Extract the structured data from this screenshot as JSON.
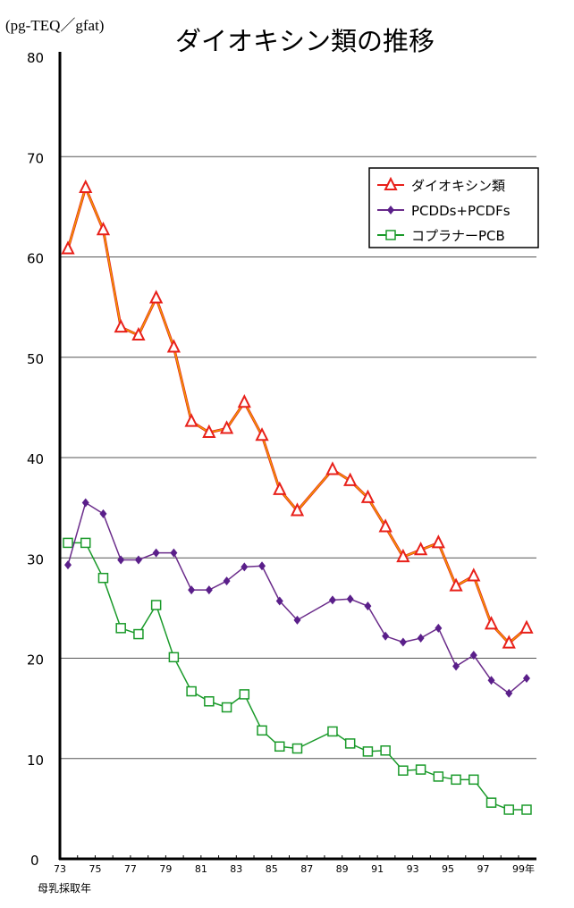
{
  "chart_data": {
    "type": "line",
    "title": "ダイオキシン類の推移",
    "ylabel": "(pg-TEQ／gfat)",
    "xlabel": "母乳採取年",
    "ylim": [
      0,
      80
    ],
    "yticks": [
      0,
      10,
      20,
      30,
      40,
      50,
      60,
      70,
      80
    ],
    "xlim": [
      73,
      99
    ],
    "xtick_labels": [
      "73",
      "75",
      "77",
      "79",
      "81",
      "83",
      "85",
      "87",
      "89",
      "91",
      "93",
      "95",
      "97",
      "99年"
    ],
    "xtick_values": [
      73,
      75,
      77,
      79,
      81,
      83,
      85,
      87,
      89,
      91,
      93,
      95,
      97,
      99
    ],
    "grid": true,
    "legend_position": "top-right",
    "x": [
      73,
      74,
      75,
      76,
      77,
      78,
      79,
      80,
      81,
      82,
      83,
      84,
      85,
      86,
      88,
      89,
      90,
      91,
      92,
      93,
      94,
      95,
      96,
      97,
      98,
      99
    ],
    "series": [
      {
        "name": "ダイオキシン類",
        "color": "#e8201a",
        "line_color": "#f0a000",
        "marker": "triangle",
        "values": [
          60.8,
          66.9,
          62.7,
          53.0,
          52.2,
          55.9,
          51.0,
          43.6,
          42.5,
          42.9,
          45.5,
          42.2,
          36.8,
          34.7,
          38.8,
          37.7,
          36.0,
          33.1,
          30.1,
          30.8,
          31.5,
          27.2,
          28.2,
          23.4,
          21.5,
          23.0
        ]
      },
      {
        "name": "PCDDs+PCDFs",
        "color": "#5a1f8a",
        "line_color": "#6a2b8a",
        "marker": "diamond",
        "values": [
          29.3,
          35.5,
          34.4,
          29.8,
          29.8,
          30.5,
          30.5,
          26.8,
          26.8,
          27.7,
          29.1,
          29.2,
          25.7,
          23.8,
          25.8,
          25.9,
          25.2,
          22.2,
          21.6,
          22.0,
          23.0,
          19.2,
          20.3,
          17.8,
          16.5,
          18.0
        ]
      },
      {
        "name": "コプラナーPCB",
        "color": "#1a9a2a",
        "line_color": "#1a9a2a",
        "marker": "square",
        "values": [
          31.5,
          31.5,
          28.0,
          23.0,
          22.4,
          25.3,
          20.1,
          16.7,
          15.7,
          15.1,
          16.4,
          12.8,
          11.2,
          11.0,
          12.7,
          11.5,
          10.7,
          10.8,
          8.8,
          8.9,
          8.2,
          7.9,
          7.9,
          5.6,
          4.9,
          4.9
        ]
      }
    ]
  }
}
